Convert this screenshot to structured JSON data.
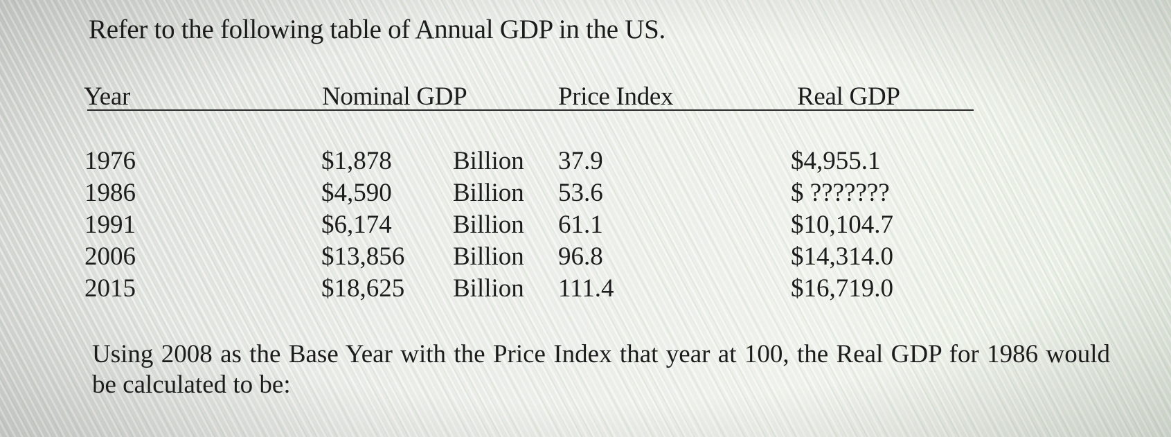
{
  "intro": "Refer to the following table of Annual GDP in the US.",
  "table": {
    "headers": {
      "year": "Year",
      "nominal": "Nominal GDP",
      "price_index": "Price Index",
      "real": "Real GDP"
    },
    "rows": [
      {
        "year": "1976",
        "nominal": "$1,878",
        "unit": "Billion",
        "price_index": "37.9",
        "real": "$4,955.1"
      },
      {
        "year": "1986",
        "nominal": "$4,590",
        "unit": "Billion",
        "price_index": "53.6",
        "real": "$ ???????"
      },
      {
        "year": "1991",
        "nominal": "$6,174",
        "unit": "Billion",
        "price_index": "61.1",
        "real": "$10,104.7"
      },
      {
        "year": "2006",
        "nominal": "$13,856",
        "unit": "Billion",
        "price_index": "96.8",
        "real": "$14,314.0"
      },
      {
        "year": "2015",
        "nominal": "$18,625",
        "unit": "Billion",
        "price_index": "111.4",
        "real": "$16,719.0"
      }
    ]
  },
  "question": "Using 2008 as the Base Year with the Price Index that year at 100, the Real GDP for 1986 would be calculated to be:"
}
